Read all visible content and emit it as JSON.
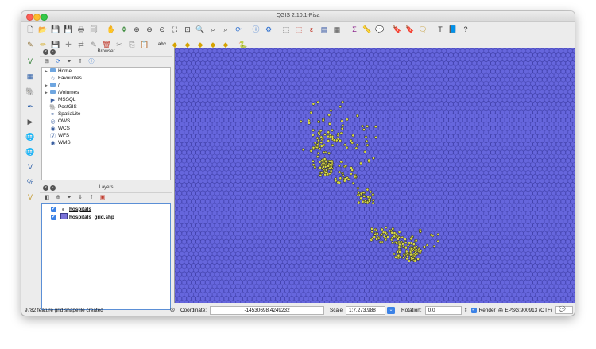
{
  "window": {
    "title": "QGIS 2.10.1-Pisa"
  },
  "toolbar_row1": [
    {
      "icon": "new-project-icon",
      "glyph": "🗋",
      "color": "#555555"
    },
    {
      "icon": "open-project-icon",
      "glyph": "📂",
      "color": "#c8962d"
    },
    {
      "icon": "save-project-icon",
      "glyph": "💾",
      "color": "#3c5fa8"
    },
    {
      "icon": "save-as-icon",
      "glyph": "💾",
      "color": "#5a7ac0"
    },
    {
      "icon": "print-composer-icon",
      "glyph": "🖶",
      "color": "#666666"
    },
    {
      "icon": "composer-manager-icon",
      "glyph": "🗐",
      "color": "#777777"
    },
    {
      "icon": "pan-map-icon",
      "glyph": "✋",
      "color": "#b9892e"
    },
    {
      "icon": "pan-to-selection-icon",
      "glyph": "✥",
      "color": "#3a8a3a"
    },
    {
      "icon": "zoom-in-icon",
      "glyph": "⊕",
      "color": "#333333"
    },
    {
      "icon": "zoom-out-icon",
      "glyph": "⊖",
      "color": "#333333"
    },
    {
      "icon": "zoom-actual-icon",
      "glyph": "⊙",
      "color": "#333333"
    },
    {
      "icon": "zoom-full-icon",
      "glyph": "⛶",
      "color": "#333333"
    },
    {
      "icon": "zoom-layer-icon",
      "glyph": "⊡",
      "color": "#333333"
    },
    {
      "icon": "zoom-selection-icon",
      "glyph": "🔍",
      "color": "#333333"
    },
    {
      "icon": "zoom-last-icon",
      "glyph": "⌕",
      "color": "#333333"
    },
    {
      "icon": "zoom-next-icon",
      "glyph": "⌕",
      "color": "#333333"
    },
    {
      "icon": "refresh-icon",
      "glyph": "⟳",
      "color": "#2d6fcf"
    },
    {
      "icon": "identify-icon",
      "glyph": "ⓘ",
      "color": "#2d6fcf"
    },
    {
      "icon": "action-icon",
      "glyph": "⚙",
      "color": "#2d6fcf"
    },
    {
      "icon": "select-features-icon",
      "glyph": "⬚",
      "color": "#444444"
    },
    {
      "icon": "deselect-icon",
      "glyph": "⬚",
      "color": "#c0392b"
    },
    {
      "icon": "field-calculator-icon",
      "glyph": "ε",
      "color": "#c0392b"
    },
    {
      "icon": "attribute-table-icon",
      "glyph": "▤",
      "color": "#2d4fa0"
    },
    {
      "icon": "statistical-summary-icon",
      "glyph": "▦",
      "color": "#555555"
    },
    {
      "icon": "sum-icon",
      "glyph": "Σ",
      "color": "#8e2a8e"
    },
    {
      "icon": "measure-icon",
      "glyph": "📏",
      "color": "#555555"
    },
    {
      "icon": "map-tips-icon",
      "glyph": "💬",
      "color": "#d6b300"
    },
    {
      "icon": "bookmark-icon",
      "glyph": "🔖",
      "color": "#d6a300"
    },
    {
      "icon": "new-bookmark-icon",
      "glyph": "🔖",
      "color": "#d6a300"
    },
    {
      "icon": "annotation-icon",
      "glyph": "🗨",
      "color": "#c49a2e"
    },
    {
      "icon": "text-annotation-icon",
      "glyph": "T",
      "color": "#333333"
    },
    {
      "icon": "help-book-icon",
      "glyph": "📘",
      "color": "#1e3f8a"
    },
    {
      "icon": "whats-this-icon",
      "glyph": "?",
      "color": "#333333"
    }
  ],
  "toolbar_row2": [
    {
      "icon": "toggle-editing-icon",
      "glyph": "✎",
      "color": "#8a6a2a"
    },
    {
      "icon": "pencil-icon",
      "glyph": "✏",
      "color": "#d1a000"
    },
    {
      "icon": "save-edits-icon",
      "glyph": "💾",
      "color": "#8a8a8a"
    },
    {
      "icon": "add-feature-icon",
      "glyph": "✚",
      "color": "#8a8a8a"
    },
    {
      "icon": "move-feature-icon",
      "glyph": "⇄",
      "color": "#8a8a8a"
    },
    {
      "icon": "node-tool-icon",
      "glyph": "✎",
      "color": "#8a8a8a"
    },
    {
      "icon": "delete-selected-icon",
      "glyph": "🗑",
      "color": "#c0392b"
    },
    {
      "icon": "cut-features-icon",
      "glyph": "✂",
      "color": "#8a8a8a"
    },
    {
      "icon": "copy-features-icon",
      "glyph": "⎘",
      "color": "#8a8a8a"
    },
    {
      "icon": "paste-features-icon",
      "glyph": "📋",
      "color": "#8a8a8a"
    },
    {
      "icon": "label-abc-icon",
      "glyph": "abc",
      "color": "#444444"
    },
    {
      "icon": "label-pin-icon",
      "glyph": "◆",
      "color": "#d6a300"
    },
    {
      "icon": "label-highlight-icon",
      "glyph": "◆",
      "color": "#d6a300"
    },
    {
      "icon": "label-move-icon",
      "glyph": "◆",
      "color": "#d6a300"
    },
    {
      "icon": "label-rotate-icon",
      "glyph": "◆",
      "color": "#d6a300"
    },
    {
      "icon": "label-change-icon",
      "glyph": "◆",
      "color": "#d6a300"
    },
    {
      "icon": "python-console-icon",
      "glyph": "🐍",
      "color": "#3a6fb0"
    }
  ],
  "left_tools": [
    {
      "icon": "add-vector-layer-icon",
      "glyph": "V",
      "color": "#2e7d32"
    },
    {
      "icon": "add-raster-layer-icon",
      "glyph": "▦",
      "color": "#2d5fa8"
    },
    {
      "icon": "add-postgis-layer-icon",
      "glyph": "🐘",
      "color": "#2d5fa8"
    },
    {
      "icon": "add-spatialite-layer-icon",
      "glyph": "✒",
      "color": "#2d5fa8"
    },
    {
      "icon": "add-mssql-layer-icon",
      "glyph": "▶",
      "color": "#555555"
    },
    {
      "icon": "add-wms-layer-icon",
      "glyph": "🌐",
      "color": "#2d5fa8"
    },
    {
      "icon": "add-wcs-layer-icon",
      "glyph": "🌐",
      "color": "#2d5fa8"
    },
    {
      "icon": "add-wfs-layer-icon",
      "glyph": "V",
      "color": "#2d5fa8"
    },
    {
      "icon": "add-delimited-text-icon",
      "glyph": "%",
      "color": "#2d5fa8"
    },
    {
      "icon": "new-shapefile-icon",
      "glyph": "V",
      "color": "#c49a2e"
    }
  ],
  "browser_panel": {
    "title": "Browser",
    "items": [
      {
        "label": "Home",
        "icon": "folder-icon",
        "arrow": "▶"
      },
      {
        "label": "Favourites",
        "icon": "star-icon",
        "arrow": ""
      },
      {
        "label": "/",
        "icon": "folder-icon",
        "arrow": "▶"
      },
      {
        "label": "/Volumes",
        "icon": "folder-icon",
        "arrow": "▶"
      },
      {
        "label": "MSSQL",
        "icon": "mssql-icon",
        "arrow": ""
      },
      {
        "label": "PostGIS",
        "icon": "postgis-icon",
        "arrow": ""
      },
      {
        "label": "SpatiaLite",
        "icon": "spatialite-icon",
        "arrow": ""
      },
      {
        "label": "OWS",
        "icon": "ows-icon",
        "arrow": ""
      },
      {
        "label": "WCS",
        "icon": "wcs-icon",
        "arrow": ""
      },
      {
        "label": "WFS",
        "icon": "wfs-icon",
        "arrow": ""
      },
      {
        "label": "WMS",
        "icon": "wms-icon",
        "arrow": ""
      }
    ]
  },
  "layers_panel": {
    "title": "Layers",
    "layers": [
      {
        "label": "hospitals",
        "checked": true,
        "symbol": "point"
      },
      {
        "label": "hospitals_grid.shp",
        "checked": true,
        "symbol": "polygon"
      }
    ]
  },
  "map": {
    "background_color": "#6666dd",
    "hex_stroke_color": "#34349a",
    "point_fill_color": "#d9d94a",
    "point_stroke_color": "#222222"
  },
  "statusbar": {
    "message": "9782 feature grid shapefile created",
    "coordinate_label": "Coordinate:",
    "coordinate_value": "-14530698,4249232",
    "scale_label": "Scale",
    "scale_value": "1:7,273,988",
    "rotation_label": "Rotation:",
    "rotation_value": "0.0",
    "render_label": "Render",
    "render_checked": true,
    "crs_value": "EPSG:900913 (OTF)"
  }
}
